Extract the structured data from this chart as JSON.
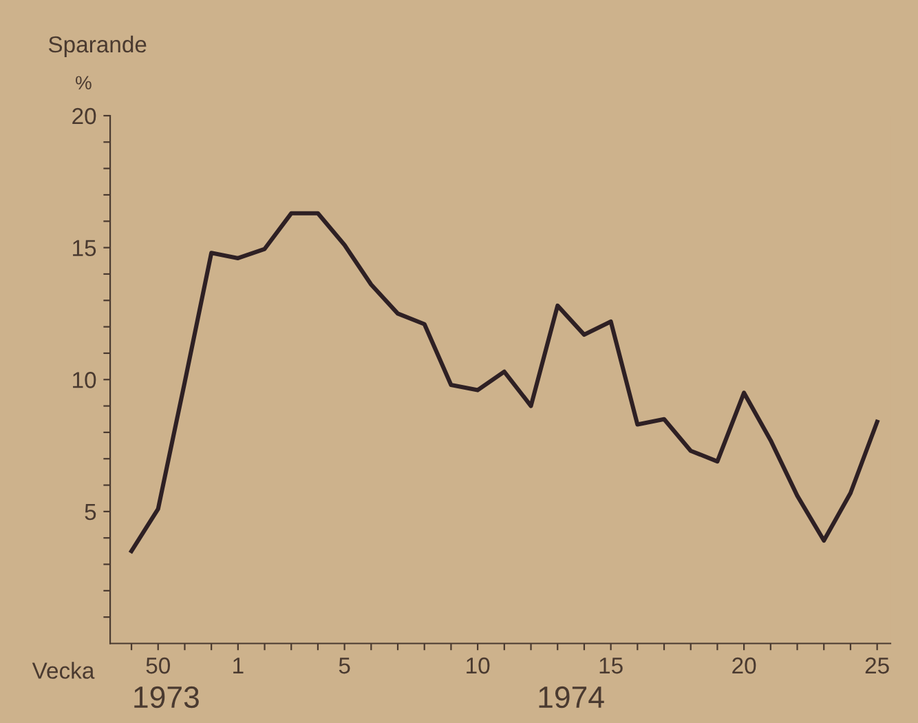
{
  "chart_data": {
    "type": "line",
    "xlabel": "Vecka",
    "ylabel": "Sparande\n%",
    "categories": [
      null,
      "50",
      null,
      null,
      "1",
      null,
      null,
      null,
      "5",
      null,
      null,
      null,
      null,
      "10",
      null,
      null,
      null,
      null,
      "15",
      null,
      null,
      null,
      null,
      "20",
      null,
      null,
      null,
      null,
      "25"
    ],
    "series": [
      {
        "color": "#2e2024",
        "values": [
          3.5,
          5.1,
          9.9,
          14.8,
          14.6,
          14.95,
          16.3,
          16.3,
          15.1,
          13.6,
          12.5,
          12.1,
          9.8,
          9.6,
          10.3,
          9.0,
          12.8,
          11.7,
          12.2,
          8.3,
          8.5,
          7.3,
          6.9,
          9.5,
          7.7,
          5.6,
          3.9,
          5.7,
          8.4
        ]
      }
    ],
    "ylim": [
      0,
      20
    ],
    "yticks": [
      {
        "value": 1,
        "label": null
      },
      {
        "value": 2,
        "label": null
      },
      {
        "value": 3,
        "label": null
      },
      {
        "value": 4,
        "label": null
      },
      5,
      {
        "value": 6,
        "label": null
      },
      {
        "value": 7,
        "label": null
      },
      {
        "value": 8,
        "label": null
      },
      {
        "value": 9,
        "label": null
      },
      10,
      {
        "value": 11,
        "label": null
      },
      {
        "value": 12,
        "label": null
      },
      {
        "value": 13,
        "label": null
      },
      {
        "value": 14,
        "label": null
      },
      15,
      {
        "value": 16,
        "label": null
      },
      {
        "value": 17,
        "label": null
      },
      {
        "value": 18,
        "label": null
      },
      {
        "value": 19,
        "label": null
      },
      20
    ],
    "annotations": [
      "1973",
      "1974"
    ],
    "grid": false,
    "marker": "none",
    "line_style": "solid"
  }
}
